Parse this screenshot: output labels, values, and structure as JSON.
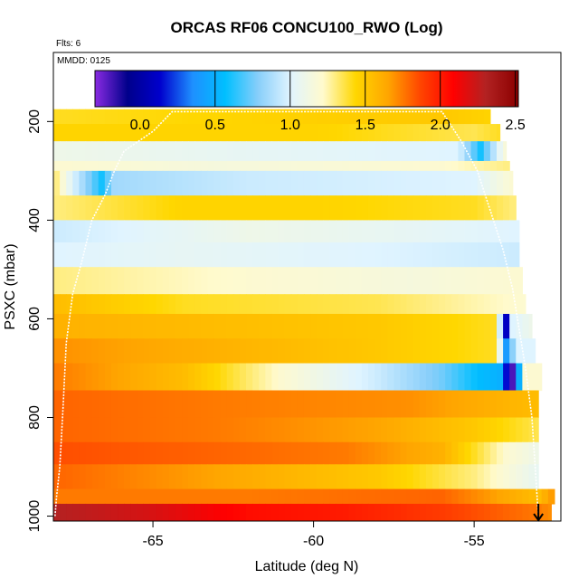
{
  "chart_data": {
    "type": "heatmap",
    "title": "ORCAS RF06 CONCU100_RWO (Log)",
    "annotations": {
      "flights": "Flts: 6",
      "date": "MMDD: 0125"
    },
    "xlabel": "Latitude (deg N)",
    "ylabel": "PSXC (mbar)",
    "xlim": [
      -68.1,
      -52.3
    ],
    "ylim": [
      1010,
      60
    ],
    "y_inverted": true,
    "x_ticks": [
      {
        "value": -65,
        "label": "-65"
      },
      {
        "value": -60,
        "label": "-60"
      },
      {
        "value": -55,
        "label": "-55"
      }
    ],
    "y_ticks": [
      {
        "value": 200,
        "label": "200"
      },
      {
        "value": 400,
        "label": "400"
      },
      {
        "value": 600,
        "label": "600"
      },
      {
        "value": 800,
        "label": "800"
      },
      {
        "value": 1000,
        "label": "1000"
      }
    ],
    "colorbar": {
      "range": [
        -0.3,
        2.52
      ],
      "ticks": [
        {
          "value": 0.0,
          "label": "0.0"
        },
        {
          "value": 0.5,
          "label": "0.5"
        },
        {
          "value": 1.0,
          "label": "1.0"
        },
        {
          "value": 1.5,
          "label": "1.5"
        },
        {
          "value": 2.0,
          "label": "2.0"
        },
        {
          "value": 2.5,
          "label": "2.5"
        }
      ],
      "colors": [
        "#8a2be2",
        "#00008b",
        "#0000cd",
        "#1e90ff",
        "#00bfff",
        "#87cefa",
        "#e0f4ff",
        "#fffacd",
        "#ffd700",
        "#ffa500",
        "#ff4500",
        "#ff0000",
        "#b22222",
        "#8b0000"
      ]
    },
    "rows": [
      {
        "p_top": 175,
        "p_bot": 205,
        "lat_min": -68.1,
        "lat_max": -54.5,
        "stops": [
          [
            -68.1,
            1.4
          ],
          [
            -62,
            1.45
          ],
          [
            -56,
            1.5
          ],
          [
            -54.5,
            1.45
          ]
        ]
      },
      {
        "p_top": 205,
        "p_bot": 240,
        "lat_min": -68.1,
        "lat_max": -54.2,
        "stops": [
          [
            -68.1,
            1.45
          ],
          [
            -60,
            1.45
          ],
          [
            -55,
            1.35
          ],
          [
            -54.2,
            1.4
          ]
        ]
      },
      {
        "p_top": 240,
        "p_bot": 280,
        "lat_min": -68.1,
        "lat_max": -54.0,
        "stops": [
          [
            -68.1,
            1.1
          ],
          [
            -62,
            1.05
          ],
          [
            -55.5,
            1.0
          ],
          [
            -54.8,
            0.6
          ],
          [
            -54.0,
            1.2
          ]
        ]
      },
      {
        "p_top": 280,
        "p_bot": 300,
        "lat_min": -68.1,
        "lat_max": -53.9,
        "stops": [
          [
            -68.1,
            1.2
          ],
          [
            -63,
            1.15
          ],
          [
            -56,
            1.2
          ],
          [
            -53.9,
            1.3
          ]
        ]
      },
      {
        "p_top": 300,
        "p_bot": 350,
        "lat_min": -68.1,
        "lat_max": -53.8,
        "stops": [
          [
            -68.1,
            1.35
          ],
          [
            -67.5,
            1.0
          ],
          [
            -66.6,
            0.6
          ],
          [
            -66.2,
            0.85
          ],
          [
            -62,
            0.95
          ],
          [
            -55,
            1.0
          ],
          [
            -53.8,
            1.2
          ]
        ]
      },
      {
        "p_top": 350,
        "p_bot": 400,
        "lat_min": -68.1,
        "lat_max": -53.7,
        "stops": [
          [
            -68.1,
            1.3
          ],
          [
            -64,
            1.45
          ],
          [
            -60,
            1.45
          ],
          [
            -55,
            1.4
          ],
          [
            -53.7,
            1.3
          ]
        ]
      },
      {
        "p_top": 400,
        "p_bot": 445,
        "lat_min": -68.1,
        "lat_max": -53.6,
        "stops": [
          [
            -68.1,
            0.95
          ],
          [
            -62,
            1.1
          ],
          [
            -57,
            1.05
          ],
          [
            -53.6,
            1.0
          ]
        ]
      },
      {
        "p_top": 445,
        "p_bot": 495,
        "lat_min": -68.1,
        "lat_max": -53.6,
        "stops": [
          [
            -68.1,
            1.0
          ],
          [
            -64,
            1.05
          ],
          [
            -58,
            1.0
          ],
          [
            -53.6,
            0.95
          ]
        ]
      },
      {
        "p_top": 495,
        "p_bot": 550,
        "lat_min": -68.1,
        "lat_max": -53.5,
        "stops": [
          [
            -68.1,
            1.3
          ],
          [
            -62,
            1.2
          ],
          [
            -57,
            1.15
          ],
          [
            -53.5,
            1.2
          ]
        ]
      },
      {
        "p_top": 550,
        "p_bot": 590,
        "lat_min": -68.1,
        "lat_max": -53.4,
        "stops": [
          [
            -68.1,
            1.55
          ],
          [
            -64,
            1.4
          ],
          [
            -58,
            1.35
          ],
          [
            -53.4,
            1.2
          ]
        ]
      },
      {
        "p_top": 590,
        "p_bot": 640,
        "lat_min": -68.1,
        "lat_max": -53.2,
        "stops": [
          [
            -68.1,
            1.6
          ],
          [
            -63,
            1.55
          ],
          [
            -58,
            1.5
          ],
          [
            -54.3,
            1.4
          ],
          [
            -54.0,
            0.1
          ],
          [
            -53.8,
            1.0
          ],
          [
            -53.2,
            1.1
          ]
        ]
      },
      {
        "p_top": 640,
        "p_bot": 690,
        "lat_min": -68.1,
        "lat_max": -53.1,
        "stops": [
          [
            -68.1,
            1.7
          ],
          [
            -63,
            1.6
          ],
          [
            -58,
            1.5
          ],
          [
            -54.3,
            1.4
          ],
          [
            -54.0,
            0.4
          ],
          [
            -53.7,
            1.0
          ],
          [
            -53.1,
            1.0
          ]
        ]
      },
      {
        "p_top": 690,
        "p_bot": 745,
        "lat_min": -68.1,
        "lat_max": -52.9,
        "stops": [
          [
            -68.1,
            1.75
          ],
          [
            -64,
            1.55
          ],
          [
            -61,
            1.2
          ],
          [
            -58,
            0.95
          ],
          [
            -56,
            0.75
          ],
          [
            -54.8,
            0.55
          ],
          [
            -54.2,
            0.5
          ],
          [
            -53.8,
            -0.2
          ],
          [
            -53.4,
            1.2
          ]
        ]
      },
      {
        "p_top": 745,
        "p_bot": 800,
        "lat_min": -68.1,
        "lat_max": -53.0,
        "stops": [
          [
            -68.1,
            1.8
          ],
          [
            -63,
            1.75
          ],
          [
            -57,
            1.7
          ],
          [
            -53.0,
            1.55
          ]
        ]
      },
      {
        "p_top": 800,
        "p_bot": 850,
        "lat_min": -68.1,
        "lat_max": -53.0,
        "stops": [
          [
            -68.1,
            1.8
          ],
          [
            -63,
            1.75
          ],
          [
            -58,
            1.65
          ],
          [
            -55,
            1.5
          ],
          [
            -53.0,
            1.35
          ]
        ]
      },
      {
        "p_top": 850,
        "p_bot": 895,
        "lat_min": -68.1,
        "lat_max": -53.0,
        "stops": [
          [
            -68.1,
            1.85
          ],
          [
            -63,
            1.8
          ],
          [
            -59,
            1.75
          ],
          [
            -56,
            1.6
          ],
          [
            -54,
            1.2
          ],
          [
            -53.0,
            1.1
          ]
        ]
      },
      {
        "p_top": 895,
        "p_bot": 945,
        "lat_min": -68.1,
        "lat_max": -53.0,
        "stops": [
          [
            -68.1,
            1.8
          ],
          [
            -63,
            1.65
          ],
          [
            -58,
            1.5
          ],
          [
            -55,
            1.3
          ],
          [
            -53.0,
            1.05
          ]
        ]
      },
      {
        "p_top": 945,
        "p_bot": 975,
        "lat_min": -68.1,
        "lat_max": -52.5,
        "stops": [
          [
            -68.1,
            1.75
          ],
          [
            -62,
            1.75
          ],
          [
            -56,
            1.8
          ],
          [
            -53,
            1.55
          ],
          [
            -52.5,
            1.7
          ]
        ]
      },
      {
        "p_top": 975,
        "p_bot": 1010,
        "lat_min": -68.1,
        "lat_max": -52.6,
        "stops": [
          [
            -68.1,
            2.3
          ],
          [
            -65,
            2.2
          ],
          [
            -62,
            2.05
          ],
          [
            -59,
            2.0
          ],
          [
            -56,
            1.9
          ],
          [
            -53,
            1.75
          ],
          [
            -52.6,
            1.7
          ]
        ]
      }
    ],
    "flight_track": [
      [
        -68.05,
        1000
      ],
      [
        -68.0,
        960
      ],
      [
        -67.9,
        900
      ],
      [
        -67.8,
        780
      ],
      [
        -67.7,
        650
      ],
      [
        -67.5,
        550
      ],
      [
        -67.2,
        480
      ],
      [
        -66.9,
        400
      ],
      [
        -66.5,
        350
      ],
      [
        -66.2,
        300
      ],
      [
        -65.9,
        260
      ],
      [
        -65.0,
        220
      ],
      [
        -64.4,
        180
      ],
      [
        -56.0,
        180
      ],
      [
        -55.4,
        240
      ],
      [
        -54.9,
        300
      ],
      [
        -54.5,
        380
      ],
      [
        -54.1,
        460
      ],
      [
        -53.8,
        540
      ],
      [
        -53.6,
        620
      ],
      [
        -53.4,
        700
      ],
      [
        -53.2,
        800
      ],
      [
        -53.1,
        900
      ],
      [
        -53.0,
        1000
      ]
    ],
    "profile_marker": {
      "lat": -53.0,
      "p_from": 975,
      "p_to": 1010
    }
  }
}
